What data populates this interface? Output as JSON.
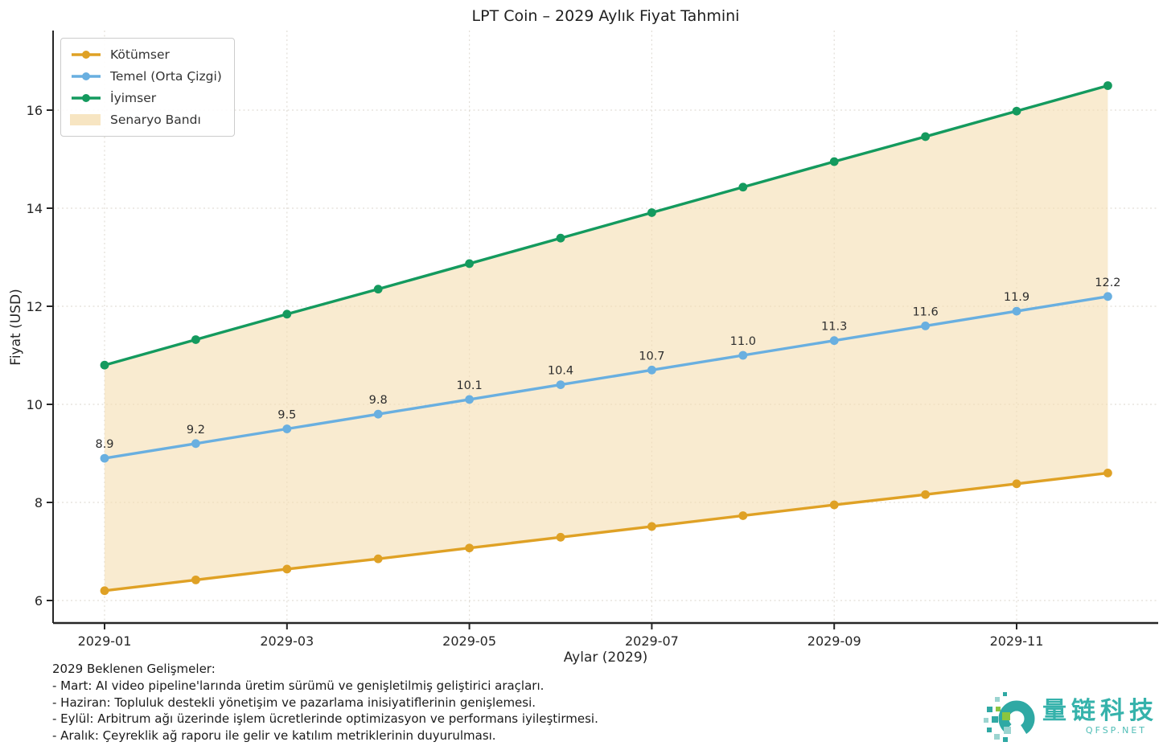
{
  "title": "LPT Coin – 2029 Aylık Fiyat Tahmini",
  "footer": {
    "heading": "2029 Beklenen Gelişmeler:",
    "lines": [
      "- Mart: AI video pipeline'larında üretim sürümü ve genişletilmiş geliştirici araçları.",
      "- Haziran: Topluluk destekli yönetişim ve pazarlama inisiyatiflerinin genişlemesi.",
      "- Eylül: Arbitrum ağı üzerinde işlem ücretlerinde optimizasyon ve performans iyileştirmesi.",
      "- Aralık: Çeyreklik ağ raporu ile gelir ve katılım metriklerinin duyurulması."
    ]
  },
  "watermark": {
    "brand": "量链科技",
    "domain": "QFSP.NET"
  },
  "colors": {
    "pessimistic": "#dfa125",
    "base": "#69afe0",
    "optimistic": "#149a5e",
    "band": "#f5deb3",
    "grid": "#e2ded7",
    "spine": "#262626",
    "tick_text": "#262626",
    "label_text": "#2e2e2e",
    "watermark_teal": "#2fa9a4",
    "watermark_green": "#8bc53f",
    "watermark_light": "#9bd4d0"
  },
  "chart_data": {
    "type": "line",
    "title": "LPT Coin – 2029 Aylık Fiyat Tahmini",
    "xlabel": "Aylar (2029)",
    "ylabel": "Fiyat (USD)",
    "categories": [
      "2029-01",
      "2029-02",
      "2029-03",
      "2029-04",
      "2029-05",
      "2029-06",
      "2029-07",
      "2029-08",
      "2029-09",
      "2029-10",
      "2029-11",
      "2029-12"
    ],
    "x_tick_indices": [
      0,
      2,
      4,
      6,
      8,
      10
    ],
    "x_tick_labels": [
      "2029-01",
      "2029-03",
      "2029-05",
      "2029-07",
      "2029-09",
      "2029-11"
    ],
    "y_ticks": [
      6,
      8,
      10,
      12,
      14,
      16
    ],
    "ylim": [
      5.55,
      17.55
    ],
    "grid": true,
    "legend_position": "upper-left",
    "series": [
      {
        "name": "Kötümser",
        "color": "#dfa125",
        "show_labels": false,
        "values": [
          6.2,
          6.42,
          6.64,
          6.85,
          7.07,
          7.29,
          7.51,
          7.73,
          7.95,
          8.16,
          8.38,
          8.6
        ]
      },
      {
        "name": "Temel (Orta Çizgi)",
        "color": "#69afe0",
        "show_labels": true,
        "values": [
          8.9,
          9.2,
          9.5,
          9.8,
          10.1,
          10.4,
          10.7,
          11.0,
          11.3,
          11.6,
          11.9,
          12.2
        ]
      },
      {
        "name": "İyimser",
        "color": "#149a5e",
        "show_labels": false,
        "values": [
          10.8,
          11.32,
          11.84,
          12.35,
          12.87,
          13.39,
          13.91,
          14.43,
          14.95,
          15.46,
          15.98,
          16.5
        ]
      }
    ],
    "band": {
      "name": "Senaryo Bandı",
      "color": "#f5deb3",
      "opacity": 0.62,
      "between": [
        "Kötümser",
        "İyimser"
      ]
    }
  }
}
